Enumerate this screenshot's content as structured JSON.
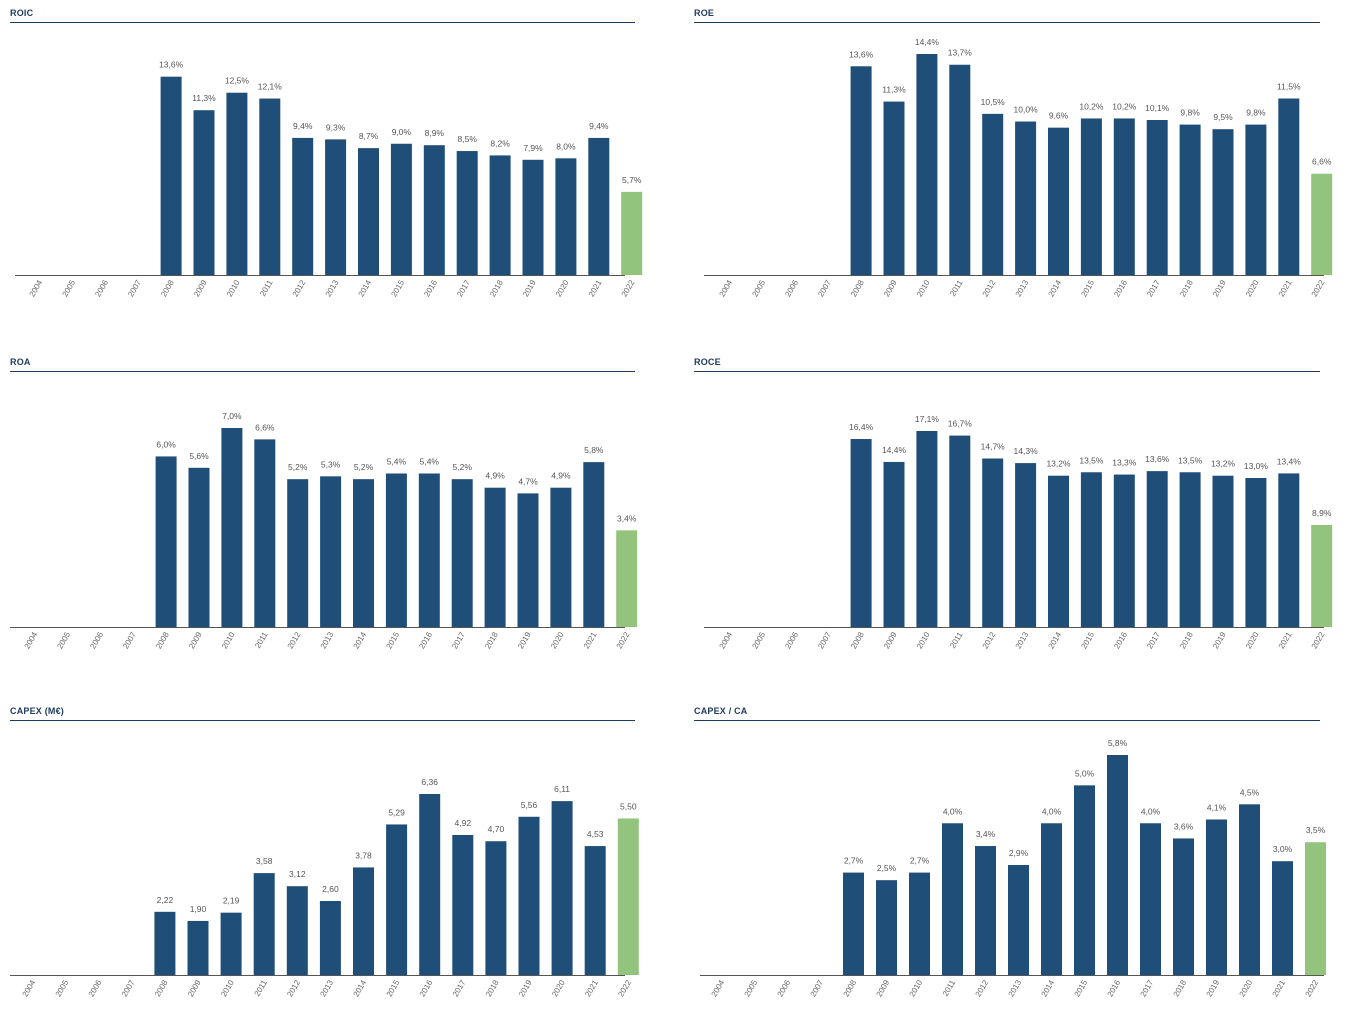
{
  "colors": {
    "bar": "#1f4e79",
    "highlight": "#93c47d",
    "title": "#1f3a5f",
    "axis": "#555555"
  },
  "chart_data": [
    {
      "type": "bar",
      "title": "ROIC",
      "categories": [
        "2004",
        "2005",
        "2006",
        "2007",
        "2008",
        "2009",
        "2010",
        "2011",
        "2012",
        "2013",
        "2014",
        "2015",
        "2016",
        "2017",
        "2018",
        "2019",
        "2020",
        "2021",
        "2022"
      ],
      "values": [
        null,
        null,
        null,
        null,
        13.6,
        11.3,
        12.5,
        12.1,
        9.4,
        9.3,
        8.7,
        9.0,
        8.9,
        8.5,
        8.2,
        7.9,
        8.0,
        9.4,
        5.7
      ],
      "labels": [
        "",
        "",
        "",
        "",
        "13,6%",
        "11,3%",
        "12,5%",
        "12,1%",
        "9,4%",
        "9,3%",
        "8,7%",
        "9,0%",
        "8,9%",
        "8,5%",
        "8,2%",
        "7,9%",
        "8,0%",
        "9,4%",
        "5,7%"
      ],
      "highlight_category": "2022",
      "ylim": [
        0,
        14.4
      ]
    },
    {
      "type": "bar",
      "title": "ROE",
      "categories": [
        "2004",
        "2005",
        "2006",
        "2007",
        "2008",
        "2009",
        "2010",
        "2011",
        "2012",
        "2013",
        "2014",
        "2015",
        "2016",
        "2017",
        "2018",
        "2019",
        "2020",
        "2021",
        "2022"
      ],
      "values": [
        null,
        null,
        null,
        null,
        13.6,
        11.3,
        14.4,
        13.7,
        10.5,
        10.0,
        9.6,
        10.2,
        10.2,
        10.1,
        9.8,
        9.5,
        9.8,
        11.5,
        6.6
      ],
      "labels": [
        "",
        "",
        "",
        "",
        "13,6%",
        "11,3%",
        "14,4%",
        "13,7%",
        "10,5%",
        "10,0%",
        "9,6%",
        "10,2%",
        "10,2%",
        "10,1%",
        "9,8%",
        "9,5%",
        "9,8%",
        "11,5%",
        "6,6%"
      ],
      "highlight_category": "2022",
      "ylim": [
        0,
        14.4
      ]
    },
    {
      "type": "bar",
      "title": "ROA",
      "categories": [
        "2004",
        "2005",
        "2006",
        "2007",
        "2008",
        "2009",
        "2010",
        "2011",
        "2012",
        "2013",
        "2014",
        "2015",
        "2016",
        "2017",
        "2018",
        "2019",
        "2020",
        "2021",
        "2022"
      ],
      "values": [
        null,
        null,
        null,
        null,
        6.0,
        5.6,
        7.0,
        6.6,
        5.2,
        5.3,
        5.2,
        5.4,
        5.4,
        5.2,
        4.9,
        4.7,
        4.9,
        5.8,
        3.4
      ],
      "labels": [
        "",
        "",
        "",
        "",
        "6,0%",
        "5,6%",
        "7,0%",
        "6,6%",
        "5,2%",
        "5,3%",
        "5,2%",
        "5,4%",
        "5,4%",
        "5,2%",
        "4,9%",
        "4,7%",
        "4,9%",
        "5,8%",
        "3,4%"
      ],
      "highlight_category": "2022",
      "ylim": [
        0,
        7.0
      ]
    },
    {
      "type": "bar",
      "title": "ROCE",
      "categories": [
        "2004",
        "2005",
        "2006",
        "2007",
        "2008",
        "2009",
        "2010",
        "2011",
        "2012",
        "2013",
        "2014",
        "2015",
        "2016",
        "2017",
        "2018",
        "2019",
        "2020",
        "2021",
        "2022"
      ],
      "values": [
        null,
        null,
        null,
        null,
        16.4,
        14.4,
        17.1,
        16.7,
        14.7,
        14.3,
        13.2,
        13.5,
        13.3,
        13.6,
        13.5,
        13.2,
        13.0,
        13.4,
        8.9
      ],
      "labels": [
        "",
        "",
        "",
        "",
        "16,4%",
        "14,4%",
        "17,1%",
        "16,7%",
        "14,7%",
        "14,3%",
        "13,2%",
        "13,5%",
        "13,3%",
        "13,6%",
        "13,5%",
        "13,2%",
        "13,0%",
        "13,4%",
        "8,9%"
      ],
      "highlight_category": "2022",
      "ylim": [
        0,
        17.1
      ]
    },
    {
      "type": "bar",
      "title": "CAPEX (M€)",
      "categories": [
        "2004",
        "2005",
        "2006",
        "2007",
        "2008",
        "2009",
        "2010",
        "2011",
        "2012",
        "2013",
        "2014",
        "2015",
        "2016",
        "2017",
        "2018",
        "2019",
        "2020",
        "2021",
        "2022"
      ],
      "values": [
        null,
        null,
        null,
        null,
        2.22,
        1.9,
        2.19,
        3.58,
        3.12,
        2.6,
        3.78,
        5.29,
        6.36,
        4.92,
        4.7,
        5.56,
        6.11,
        4.53,
        5.5
      ],
      "labels": [
        "",
        "",
        "",
        "",
        "2,22",
        "1,90",
        "2,19",
        "3,58",
        "3,12",
        "2,60",
        "3,78",
        "5,29",
        "6,36",
        "4,92",
        "4,70",
        "5,56",
        "6,11",
        "4,53",
        "5,50"
      ],
      "highlight_category": "2022",
      "ylim": [
        0,
        6.36
      ]
    },
    {
      "type": "bar",
      "title": "CAPEX / CA",
      "categories": [
        "2004",
        "2005",
        "2006",
        "2007",
        "2008",
        "2009",
        "2010",
        "2011",
        "2012",
        "2013",
        "2014",
        "2015",
        "2016",
        "2017",
        "2018",
        "2019",
        "2020",
        "2021",
        "2022"
      ],
      "values": [
        null,
        null,
        null,
        null,
        2.7,
        2.5,
        2.7,
        4.0,
        3.4,
        2.9,
        4.0,
        5.0,
        5.8,
        4.0,
        3.6,
        4.1,
        4.5,
        3.0,
        3.5
      ],
      "labels": [
        "",
        "",
        "",
        "",
        "2,7%",
        "2,5%",
        "2,7%",
        "4,0%",
        "3,4%",
        "2,9%",
        "4,0%",
        "5,0%",
        "5,8%",
        "4,0%",
        "3,6%",
        "4,1%",
        "4,5%",
        "3,0%",
        "3,5%"
      ],
      "highlight_category": "2022",
      "ylim": [
        0,
        5.8
      ]
    }
  ]
}
